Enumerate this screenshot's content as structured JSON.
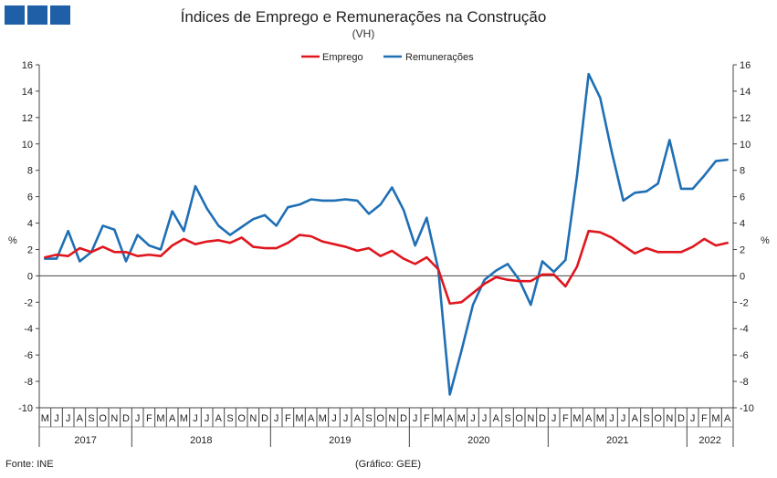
{
  "chart_data": {
    "type": "line",
    "title": "Índices de Emprego e Remunerações na Construção",
    "subtitle": "(VH)",
    "ylabel": "%",
    "ylim": [
      -10,
      16
    ],
    "yticks": [
      -10,
      -8,
      -6,
      -4,
      -2,
      0,
      2,
      4,
      6,
      8,
      10,
      12,
      14,
      16
    ],
    "legend_position": "top-center",
    "grid": false,
    "x": [
      "2017-05",
      "2017-06",
      "2017-07",
      "2017-08",
      "2017-09",
      "2017-10",
      "2017-11",
      "2017-12",
      "2018-01",
      "2018-02",
      "2018-03",
      "2018-04",
      "2018-05",
      "2018-06",
      "2018-07",
      "2018-08",
      "2018-09",
      "2018-10",
      "2018-11",
      "2018-12",
      "2019-01",
      "2019-02",
      "2019-03",
      "2019-04",
      "2019-05",
      "2019-06",
      "2019-07",
      "2019-08",
      "2019-09",
      "2019-10",
      "2019-11",
      "2019-12",
      "2020-01",
      "2020-02",
      "2020-03",
      "2020-04",
      "2020-05",
      "2020-06",
      "2020-07",
      "2020-08",
      "2020-09",
      "2020-10",
      "2020-11",
      "2020-12",
      "2021-01",
      "2021-02",
      "2021-03",
      "2021-04",
      "2021-05",
      "2021-06",
      "2021-07",
      "2021-08",
      "2021-09",
      "2021-10",
      "2021-11",
      "2021-12",
      "2022-01",
      "2022-02",
      "2022-03",
      "2022-04"
    ],
    "month_labels": [
      "M",
      "J",
      "J",
      "A",
      "S",
      "O",
      "N",
      "D",
      "J",
      "F",
      "M",
      "A",
      "M",
      "J",
      "J",
      "A",
      "S",
      "O",
      "N",
      "D",
      "J",
      "F",
      "M",
      "A",
      "M",
      "J",
      "J",
      "A",
      "S",
      "O",
      "N",
      "D",
      "J",
      "F",
      "M",
      "A",
      "M",
      "J",
      "J",
      "A",
      "S",
      "O",
      "N",
      "D",
      "J",
      "F",
      "M",
      "A",
      "M",
      "J",
      "J",
      "A",
      "S",
      "O",
      "N",
      "D",
      "J",
      "F",
      "M",
      "A"
    ],
    "year_labels": [
      {
        "label": "2017",
        "start": 0,
        "end": 7
      },
      {
        "label": "2018",
        "start": 8,
        "end": 19
      },
      {
        "label": "2019",
        "start": 20,
        "end": 31
      },
      {
        "label": "2020",
        "start": 32,
        "end": 43
      },
      {
        "label": "2021",
        "start": 44,
        "end": 55
      },
      {
        "label": "2022",
        "start": 56,
        "end": 59
      }
    ],
    "series": [
      {
        "name": "Emprego",
        "color": "#e0161e",
        "values": [
          1.4,
          1.6,
          1.5,
          2.1,
          1.8,
          2.2,
          1.8,
          1.8,
          1.5,
          1.6,
          1.5,
          2.3,
          2.8,
          2.4,
          2.6,
          2.7,
          2.5,
          2.9,
          2.2,
          2.1,
          2.1,
          2.5,
          3.1,
          3.0,
          2.6,
          2.4,
          2.2,
          1.9,
          2.1,
          1.5,
          1.9,
          1.3,
          0.9,
          1.4,
          0.5,
          -2.1,
          -2.0,
          -1.3,
          -0.6,
          -0.1,
          -0.3,
          -0.4,
          -0.4,
          0.1,
          0.1,
          -0.8,
          0.7,
          3.4,
          3.3,
          2.9,
          2.3,
          1.7,
          2.1,
          1.8,
          1.8,
          1.8,
          2.2,
          2.8,
          2.3,
          2.5
        ]
      },
      {
        "name": "Remunerações",
        "color": "#1f6fb5",
        "values": [
          1.3,
          1.3,
          3.4,
          1.1,
          1.8,
          3.8,
          3.5,
          1.1,
          3.1,
          2.3,
          2.0,
          4.9,
          3.4,
          6.8,
          5.1,
          3.8,
          3.1,
          3.7,
          4.3,
          4.6,
          3.8,
          5.2,
          5.4,
          5.8,
          5.7,
          5.7,
          5.8,
          5.7,
          4.7,
          5.4,
          6.7,
          5.0,
          2.3,
          4.4,
          0.5,
          -9.0,
          -5.7,
          -2.2,
          -0.3,
          0.4,
          0.9,
          -0.3,
          -2.2,
          1.1,
          0.3,
          1.2,
          7.6,
          15.3,
          13.5,
          9.4,
          5.7,
          6.3,
          6.4,
          7.0,
          10.3,
          6.6,
          6.6,
          7.6,
          8.7,
          8.8
        ]
      }
    ]
  },
  "footer": {
    "source": "Fonte: INE",
    "credit": "(Gráfico: GEE)"
  }
}
